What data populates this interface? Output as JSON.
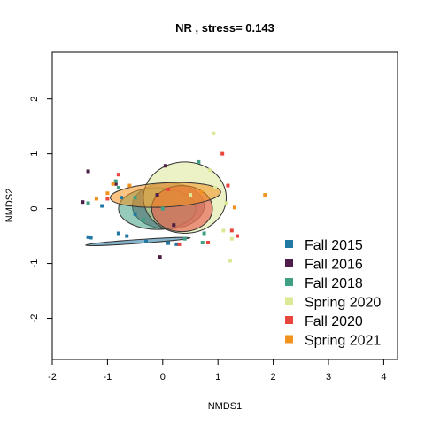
{
  "chart_data": {
    "type": "scatter",
    "title": "NR , stress= 0.143",
    "xlabel": "NMDS1",
    "ylabel": "NMDS2",
    "xlim": [
      -2,
      4.25
    ],
    "ylim": [
      -2.75,
      2.85
    ],
    "x_ticks": [
      -2,
      -1,
      0,
      1,
      2,
      3,
      4
    ],
    "y_ticks": [
      -2,
      -1,
      0,
      1,
      2
    ],
    "x_tick_labels": [
      "-2",
      "-1",
      "0",
      "1",
      "2",
      "3",
      "4"
    ],
    "y_tick_labels": [
      "-2",
      "-1",
      "0",
      "1",
      "2"
    ],
    "legend_position": "bottom-right",
    "series": [
      {
        "name": "Fall 2015",
        "color": "#2178A3",
        "points": [
          [
            -1.35,
            -0.52
          ],
          [
            -1.3,
            -0.53
          ],
          [
            -0.8,
            -0.45
          ],
          [
            -0.65,
            -0.5
          ],
          [
            -0.3,
            -0.6
          ],
          [
            0.1,
            -0.63
          ],
          [
            0.25,
            -0.65
          ],
          [
            -1.1,
            0.05
          ],
          [
            -0.75,
            0.2
          ],
          [
            -0.5,
            -0.1
          ]
        ],
        "ellipse": {
          "cx": -0.45,
          "cy": -0.6,
          "rx": 0.95,
          "ry": 0.035,
          "angle": -4
        }
      },
      {
        "name": "Fall 2016",
        "color": "#4D1F48",
        "points": [
          [
            -1.35,
            0.68
          ],
          [
            -1.45,
            0.12
          ],
          [
            -0.85,
            0.45
          ],
          [
            -0.05,
            -0.88
          ],
          [
            0.05,
            0.78
          ],
          [
            -0.1,
            0.25
          ],
          [
            0.2,
            -0.3
          ]
        ],
        "ellipse": {
          "cx": 0.1,
          "cy": 0.05,
          "rx": 0.65,
          "ry": 0.42,
          "angle": 0
        }
      },
      {
        "name": "Fall 2018",
        "color": "#3FA084",
        "points": [
          [
            -1.35,
            0.1
          ],
          [
            -0.85,
            0.5
          ],
          [
            -0.5,
            0.2
          ],
          [
            -0.35,
            -0.2
          ],
          [
            0.4,
            -0.55
          ],
          [
            0.65,
            0.85
          ],
          [
            0.72,
            -0.62
          ],
          [
            0.75,
            -0.45
          ],
          [
            -0.8,
            0.38
          ],
          [
            0.0,
            0.0
          ]
        ],
        "ellipse": {
          "cx": -0.1,
          "cy": 0.0,
          "rx": 0.7,
          "ry": 0.38,
          "angle": 0
        }
      },
      {
        "name": "Spring 2020",
        "color": "#DDE896",
        "points": [
          [
            0.92,
            1.37
          ],
          [
            0.95,
            0.38
          ],
          [
            1.1,
            -0.4
          ],
          [
            1.25,
            -0.55
          ],
          [
            1.22,
            -0.95
          ],
          [
            1.15,
            0.1
          ],
          [
            0.85,
            0.7
          ],
          [
            0.5,
            0.25
          ]
        ],
        "ellipse": {
          "cx": 0.4,
          "cy": 0.2,
          "rx": 0.75,
          "ry": 0.65,
          "angle": 0
        }
      },
      {
        "name": "Fall 2020",
        "color": "#E8453C",
        "points": [
          [
            1.08,
            1.0
          ],
          [
            -0.8,
            0.62
          ],
          [
            -1.0,
            0.18
          ],
          [
            0.82,
            -0.62
          ],
          [
            1.25,
            -0.4
          ],
          [
            1.35,
            -0.5
          ],
          [
            1.18,
            0.42
          ],
          [
            0.3,
            -0.65
          ],
          [
            0.1,
            0.35
          ]
        ],
        "ellipse": {
          "cx": 0.35,
          "cy": 0.0,
          "rx": 0.55,
          "ry": 0.42,
          "angle": 0
        }
      },
      {
        "name": "Spring 2021",
        "color": "#F2921E",
        "points": [
          [
            -1.2,
            0.18
          ],
          [
            -1.0,
            0.28
          ],
          [
            1.85,
            0.25
          ],
          [
            1.3,
            0.02
          ],
          [
            -0.6,
            0.42
          ],
          [
            -0.9,
            0.45
          ],
          [
            0.7,
            0.3
          ]
        ],
        "ellipse": {
          "cx": 0.05,
          "cy": 0.25,
          "rx": 1.0,
          "ry": 0.22,
          "angle": -3
        }
      }
    ]
  }
}
